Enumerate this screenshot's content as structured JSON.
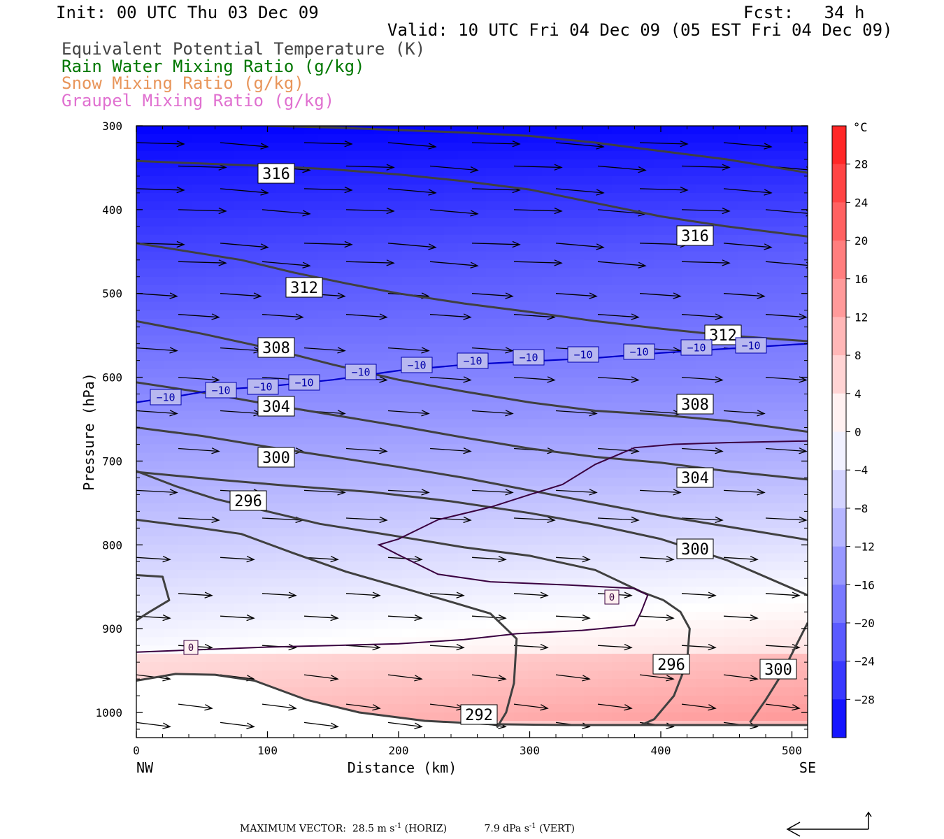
{
  "header": {
    "init": "Init: 00 UTC Thu 03 Dec 09",
    "fcst": "Fcst:   34 h",
    "valid": "Valid: 10 UTC Fri 04 Dec 09 (05 EST Fri 04 Dec 09)"
  },
  "legend": [
    {
      "label": "Equivalent Potential Temperature (K)",
      "color": "#444444"
    },
    {
      "label": "Rain Water Mixing Ratio (g/kg)",
      "color": "#007700"
    },
    {
      "label": "Snow Mixing Ratio (g/kg)",
      "color": "#e8955a"
    },
    {
      "label": "Graupel Mixing Ratio (g/kg)",
      "color": "#e070d0"
    }
  ],
  "footer": {
    "max_vector_label": "MAXIMUM VECTOR:",
    "horiz_value": "28.5 m s",
    "horiz_exp": "-1",
    "horiz_tag": "(HORIZ)",
    "vert_value": "7.9 dPa s",
    "vert_exp": "-1",
    "vert_tag": "(VERT)"
  },
  "chart_data": {
    "type": "contour-cross-section",
    "xlabel": "Distance (km)",
    "ylabel": "Pressure (hPa)",
    "x_ticks": [
      0,
      100,
      200,
      300,
      400,
      500
    ],
    "y_ticks": [
      300,
      400,
      500,
      600,
      700,
      800,
      900,
      1000
    ],
    "xlim": [
      0,
      512
    ],
    "ylim": [
      1030,
      300
    ],
    "x_end_labels": {
      "left": "NW",
      "right": "SE"
    },
    "colorbar": {
      "unit": "°C",
      "tick_labels": [
        "28",
        "24",
        "20",
        "16",
        "12",
        "8",
        "4",
        "0",
        "−4",
        "−8",
        "−12",
        "−16",
        "−20",
        "−24",
        "−28"
      ],
      "min": -32,
      "max": 32,
      "step": 4
    },
    "theta_e_contours": [
      {
        "value": 292,
        "label": "292",
        "points": [
          [
            0,
            962
          ],
          [
            30,
            954
          ],
          [
            60,
            955
          ],
          [
            90,
            962
          ],
          [
            130,
            985
          ],
          [
            170,
            1000
          ],
          [
            220,
            1010
          ],
          [
            270,
            1014
          ],
          [
            330,
            1015
          ],
          [
            400,
            1015
          ],
          [
            512,
            1015
          ]
        ]
      },
      {
        "value": 296,
        "label": "296",
        "points": [
          [
            0,
            890
          ],
          [
            10,
            880
          ],
          [
            25,
            866
          ],
          [
            20,
            838
          ],
          [
            0,
            836
          ]
        ]
      },
      {
        "value": 296,
        "label": "296",
        "points": [
          [
            0,
            770
          ],
          [
            40,
            778
          ],
          [
            80,
            787
          ],
          [
            120,
            810
          ],
          [
            160,
            832
          ],
          [
            200,
            850
          ],
          [
            240,
            868
          ],
          [
            270,
            882
          ],
          [
            290,
            912
          ],
          [
            288,
            965
          ],
          [
            282,
            1000
          ],
          [
            275,
            1018
          ]
        ]
      },
      {
        "value": 296,
        "label": "296",
        "points": [
          [
            385,
            1015
          ],
          [
            395,
            1008
          ],
          [
            410,
            980
          ],
          [
            420,
            940
          ],
          [
            422,
            900
          ],
          [
            415,
            880
          ],
          [
            402,
            866
          ]
        ]
      },
      {
        "value": 300,
        "label": "300",
        "points": [
          [
            0,
            712
          ],
          [
            30,
            730
          ],
          [
            60,
            745
          ],
          [
            100,
            760
          ],
          [
            140,
            775
          ],
          [
            200,
            790
          ],
          [
            250,
            803
          ],
          [
            300,
            813
          ],
          [
            350,
            830
          ],
          [
            385,
            856
          ],
          [
            402,
            866
          ]
        ]
      },
      {
        "value": 300,
        "label": "300",
        "points": [
          [
            0,
            713
          ],
          [
            60,
            722
          ],
          [
            120,
            730
          ],
          [
            180,
            737
          ],
          [
            240,
            748
          ],
          [
            300,
            762
          ],
          [
            350,
            776
          ],
          [
            400,
            793
          ],
          [
            450,
            818
          ],
          [
            512,
            860
          ]
        ]
      },
      {
        "value": 300,
        "label": "300",
        "points": [
          [
            468,
            1012
          ],
          [
            480,
            985
          ],
          [
            490,
            960
          ],
          [
            500,
            930
          ],
          [
            512,
            893
          ]
        ]
      },
      {
        "value": 304,
        "label": "304",
        "points": [
          [
            0,
            660
          ],
          [
            50,
            670
          ],
          [
            100,
            683
          ],
          [
            150,
            695
          ],
          [
            200,
            707
          ],
          [
            250,
            720
          ],
          [
            300,
            735
          ],
          [
            350,
            750
          ],
          [
            400,
            765
          ],
          [
            450,
            778
          ],
          [
            512,
            794
          ]
        ]
      },
      {
        "value": 304,
        "label": "304",
        "points": [
          [
            0,
            606
          ],
          [
            50,
            618
          ],
          [
            100,
            632
          ],
          [
            150,
            645
          ],
          [
            200,
            658
          ],
          [
            250,
            672
          ],
          [
            300,
            685
          ],
          [
            350,
            695
          ],
          [
            400,
            702
          ],
          [
            450,
            712
          ],
          [
            512,
            722
          ]
        ]
      },
      {
        "value": 308,
        "label": "308",
        "points": [
          [
            0,
            533
          ],
          [
            50,
            548
          ],
          [
            100,
            565
          ],
          [
            150,
            585
          ],
          [
            200,
            603
          ],
          [
            250,
            617
          ],
          [
            300,
            630
          ],
          [
            350,
            640
          ],
          [
            400,
            645
          ],
          [
            450,
            652
          ],
          [
            512,
            665
          ]
        ]
      },
      {
        "value": 312,
        "label": "312",
        "points": [
          [
            0,
            440
          ],
          [
            40,
            450
          ],
          [
            80,
            460
          ],
          [
            120,
            475
          ],
          [
            160,
            488
          ],
          [
            200,
            500
          ],
          [
            250,
            512
          ],
          [
            300,
            522
          ],
          [
            350,
            533
          ],
          [
            400,
            542
          ],
          [
            450,
            550
          ],
          [
            512,
            557
          ]
        ]
      },
      {
        "value": 316,
        "label": "316",
        "points": [
          [
            0,
            342
          ],
          [
            50,
            345
          ],
          [
            100,
            348
          ],
          [
            150,
            352
          ],
          [
            200,
            358
          ],
          [
            250,
            366
          ],
          [
            300,
            376
          ],
          [
            350,
            392
          ],
          [
            400,
            408
          ],
          [
            450,
            420
          ],
          [
            512,
            432
          ]
        ]
      },
      {
        "value": 316,
        "label": "316",
        "points": [
          [
            100,
            300
          ],
          [
            150,
            302
          ],
          [
            200,
            305
          ],
          [
            250,
            308
          ],
          [
            300,
            312
          ],
          [
            350,
            320
          ],
          [
            400,
            330
          ],
          [
            450,
            340
          ],
          [
            512,
            356
          ]
        ]
      }
    ],
    "freezing_level_0C": [
      {
        "label": "0",
        "points": [
          [
            0,
            928
          ],
          [
            50,
            925
          ],
          [
            100,
            922
          ],
          [
            150,
            920
          ],
          [
            200,
            918
          ],
          [
            250,
            913
          ],
          [
            290,
            906
          ],
          [
            340,
            902
          ],
          [
            380,
            896
          ],
          [
            385,
            880
          ],
          [
            390,
            860
          ],
          [
            380,
            852
          ],
          [
            330,
            848
          ],
          [
            270,
            844
          ],
          [
            230,
            835
          ],
          [
            200,
            812
          ],
          [
            185,
            800
          ],
          [
            200,
            793
          ],
          [
            230,
            770
          ],
          [
            270,
            755
          ],
          [
            300,
            740
          ],
          [
            325,
            728
          ],
          [
            350,
            704
          ],
          [
            380,
            684
          ],
          [
            410,
            680
          ],
          [
            450,
            678
          ],
          [
            512,
            676
          ]
        ]
      }
    ],
    "isotherm_minus10C": [
      {
        "label": "−10",
        "points": [
          [
            0,
            630
          ],
          [
            30,
            623
          ],
          [
            60,
            615
          ],
          [
            100,
            611
          ],
          [
            150,
            603
          ],
          [
            200,
            592
          ],
          [
            250,
            585
          ],
          [
            300,
            581
          ],
          [
            350,
            577
          ],
          [
            400,
            571
          ],
          [
            450,
            566
          ],
          [
            512,
            560
          ]
        ]
      }
    ],
    "vector_max_horiz": 28.5,
    "vector_max_vert": 7.9
  }
}
